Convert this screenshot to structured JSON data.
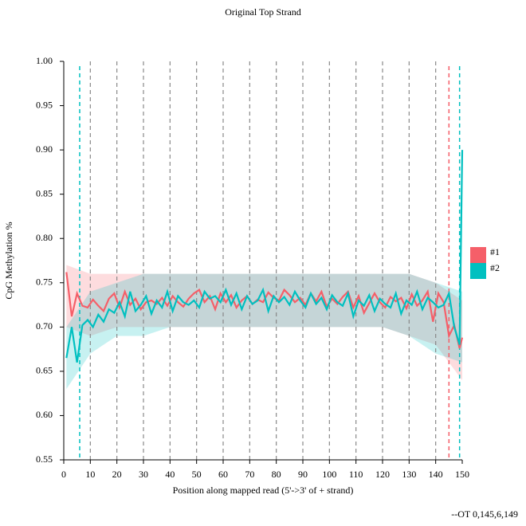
{
  "chart_data": {
    "type": "line",
    "title": "Original Top Strand",
    "x_label": "Position along mapped read (5'->3' of + strand)",
    "y_label": "CpG Methylation %",
    "footnote": "--OT 0,145,6,149",
    "xlim": [
      0,
      150
    ],
    "xticks": [
      0,
      10,
      20,
      30,
      40,
      50,
      60,
      70,
      80,
      90,
      100,
      110,
      120,
      130,
      140,
      150
    ],
    "ylim": [
      0.55,
      1.0
    ],
    "yticks": [
      0.55,
      {
        "value": 0.6,
        "label": "0.60"
      },
      0.65,
      {
        "value": 0.7,
        "label": "0.70"
      },
      0.75,
      {
        "value": 0.8,
        "label": "0.80"
      },
      0.85,
      {
        "value": 0.9,
        "label": "0.90"
      },
      0.95,
      {
        "value": 1.0,
        "label": "1.00"
      }
    ],
    "guide_lines": [
      10,
      20,
      30,
      40,
      50,
      60,
      70,
      80,
      90,
      100,
      110,
      120,
      130,
      140
    ],
    "guide_color": "#888888",
    "x": [
      1,
      3,
      5,
      7,
      9,
      11,
      13,
      15,
      17,
      19,
      21,
      23,
      25,
      27,
      29,
      31,
      33,
      35,
      37,
      39,
      41,
      43,
      45,
      47,
      49,
      51,
      53,
      55,
      57,
      59,
      61,
      63,
      65,
      67,
      69,
      71,
      73,
      75,
      77,
      79,
      81,
      83,
      85,
      87,
      89,
      91,
      93,
      95,
      97,
      99,
      101,
      103,
      105,
      107,
      109,
      111,
      113,
      115,
      117,
      119,
      121,
      123,
      125,
      127,
      129,
      131,
      133,
      135,
      137,
      139,
      141,
      143,
      145,
      147,
      149,
      150
    ],
    "band_x": [
      1,
      10,
      20,
      30,
      40,
      50,
      60,
      70,
      80,
      90,
      100,
      110,
      120,
      130,
      140,
      150
    ],
    "series": [
      {
        "name": "#1",
        "color": "#f55f69",
        "cutoffs": [
          145
        ],
        "values": [
          0.762,
          0.712,
          0.738,
          0.724,
          0.722,
          0.731,
          0.724,
          0.718,
          0.732,
          0.738,
          0.722,
          0.74,
          0.725,
          0.732,
          0.72,
          0.728,
          0.73,
          0.726,
          0.733,
          0.724,
          0.735,
          0.728,
          0.723,
          0.732,
          0.738,
          0.742,
          0.728,
          0.735,
          0.72,
          0.738,
          0.728,
          0.736,
          0.722,
          0.73,
          0.735,
          0.726,
          0.731,
          0.728,
          0.739,
          0.733,
          0.73,
          0.742,
          0.736,
          0.728,
          0.733,
          0.725,
          0.738,
          0.729,
          0.74,
          0.723,
          0.732,
          0.726,
          0.734,
          0.74,
          0.722,
          0.735,
          0.716,
          0.727,
          0.738,
          0.728,
          0.722,
          0.734,
          0.729,
          0.733,
          0.721,
          0.737,
          0.724,
          0.73,
          0.74,
          0.706,
          0.738,
          0.728,
          0.69,
          0.702,
          0.676,
          0.688
        ],
        "lower": [
          0.7,
          0.69,
          0.7,
          0.7,
          0.7,
          0.7,
          0.7,
          0.7,
          0.7,
          0.7,
          0.7,
          0.7,
          0.7,
          0.69,
          0.68,
          0.64
        ],
        "upper": [
          0.77,
          0.76,
          0.76,
          0.76,
          0.76,
          0.76,
          0.76,
          0.76,
          0.76,
          0.76,
          0.76,
          0.76,
          0.76,
          0.76,
          0.75,
          0.73
        ]
      },
      {
        "name": "#2",
        "color": "#00c0c0",
        "cutoffs": [
          6,
          149
        ],
        "values": [
          0.665,
          0.7,
          0.66,
          0.702,
          0.708,
          0.7,
          0.714,
          0.706,
          0.72,
          0.716,
          0.728,
          0.712,
          0.74,
          0.718,
          0.725,
          0.735,
          0.715,
          0.73,
          0.722,
          0.74,
          0.718,
          0.735,
          0.728,
          0.725,
          0.73,
          0.722,
          0.74,
          0.732,
          0.735,
          0.728,
          0.742,
          0.725,
          0.738,
          0.72,
          0.735,
          0.726,
          0.73,
          0.742,
          0.718,
          0.735,
          0.728,
          0.734,
          0.725,
          0.74,
          0.73,
          0.722,
          0.738,
          0.726,
          0.733,
          0.72,
          0.736,
          0.728,
          0.724,
          0.738,
          0.712,
          0.73,
          0.724,
          0.736,
          0.718,
          0.732,
          0.726,
          0.722,
          0.738,
          0.715,
          0.73,
          0.725,
          0.74,
          0.72,
          0.733,
          0.728,
          0.722,
          0.725,
          0.738,
          0.7,
          0.68,
          0.9
        ],
        "lower": [
          0.63,
          0.67,
          0.69,
          0.69,
          0.7,
          0.7,
          0.7,
          0.7,
          0.7,
          0.7,
          0.7,
          0.7,
          0.7,
          0.69,
          0.67,
          0.66
        ],
        "upper": [
          0.7,
          0.74,
          0.75,
          0.76,
          0.76,
          0.76,
          0.76,
          0.76,
          0.76,
          0.76,
          0.76,
          0.76,
          0.76,
          0.76,
          0.75,
          0.74
        ]
      }
    ]
  }
}
